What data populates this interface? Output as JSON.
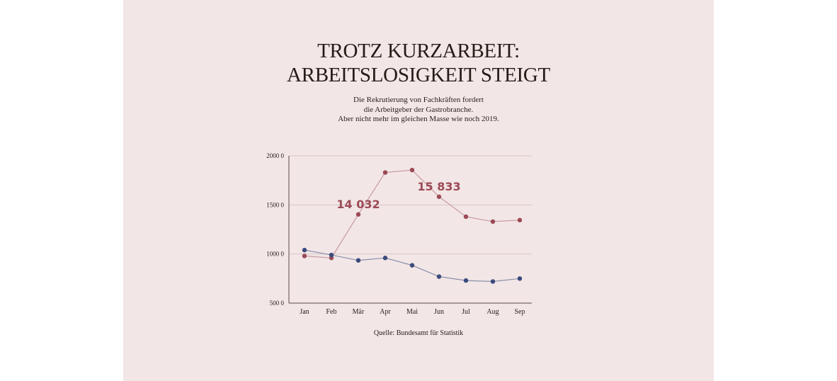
{
  "title_lines": [
    "TROTZ KURZARBEIT:",
    "ARBEITSLOSIGKEIT STEIGT"
  ],
  "subtitle_lines": [
    "Die Rekrutierung von Fachkräften fordert",
    "die Arbeitgeber der Gastrobranche.",
    "Aber nicht mehr im gleichen Masse wie noch 2019."
  ],
  "source": "Quelle: Bundesamt für Statistik",
  "chart_data": {
    "type": "line",
    "title": "",
    "xlabel": "",
    "ylabel": "",
    "categories": [
      "Jan",
      "Feb",
      "Mär",
      "Apr",
      "Mai",
      "Jun",
      "Jul",
      "Aug",
      "Sep"
    ],
    "yticks": [
      5000,
      10000,
      15000,
      20000
    ],
    "ytick_labels": [
      "500 0",
      "1000 0",
      "1500 0",
      "2000 0"
    ],
    "ylim": [
      5000,
      20000
    ],
    "grid": true,
    "legend": "none",
    "series": [
      {
        "color": "#9b4a55",
        "line_color": "#c99aa0",
        "values": [
          9800,
          9600,
          14032,
          18300,
          18550,
          15833,
          13800,
          13300,
          13450
        ]
      },
      {
        "color": "#3b4a7a",
        "line_color": "#8a90ac",
        "values": [
          10400,
          9900,
          9350,
          9600,
          8850,
          7700,
          7300,
          7200,
          7500
        ]
      }
    ],
    "annotations": [
      {
        "text": "14 032",
        "series": 0,
        "index": 2
      },
      {
        "text": "15 833",
        "series": 0,
        "index": 5
      }
    ]
  }
}
